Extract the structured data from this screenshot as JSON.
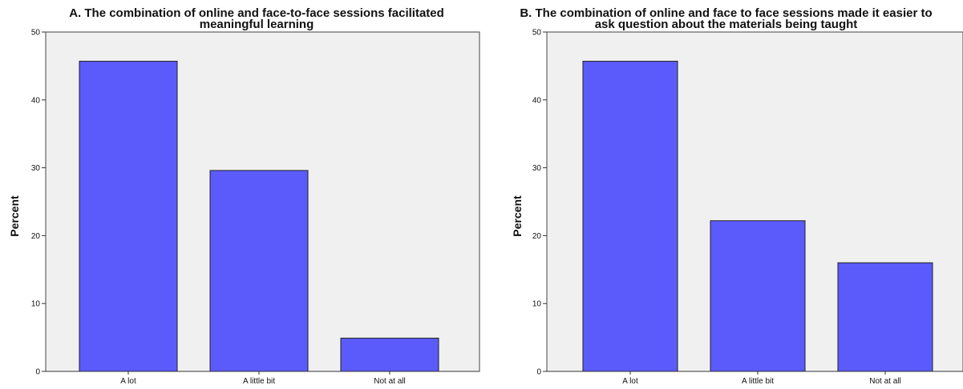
{
  "chart_data": [
    {
      "type": "bar",
      "title_line1": "A. The combination of online and face-to-face sessions facilitated",
      "title_line2": "meaningful learning",
      "xlabel": "",
      "ylabel": "Percent",
      "categories": [
        "A lot",
        "A little bit",
        "Not at all"
      ],
      "values": [
        45.7,
        29.6,
        4.9
      ],
      "ylim": [
        0,
        50
      ],
      "yticks": [
        0,
        10,
        20,
        30,
        40,
        50
      ],
      "grid": false,
      "bar_color": "#5b5bfb",
      "plot_background": "#f0f0f0"
    },
    {
      "type": "bar",
      "title_line1": "B. The combination of online and face to face sessions made it easier to",
      "title_line2": "ask question about the materials being taught",
      "xlabel": "",
      "ylabel": "Percent",
      "categories": [
        "A lot",
        "A little bit",
        "Not at all"
      ],
      "values": [
        45.7,
        22.2,
        16.0
      ],
      "ylim": [
        0,
        50
      ],
      "yticks": [
        0,
        10,
        20,
        30,
        40,
        50
      ],
      "grid": false,
      "bar_color": "#5b5bfb",
      "plot_background": "#f0f0f0"
    }
  ]
}
